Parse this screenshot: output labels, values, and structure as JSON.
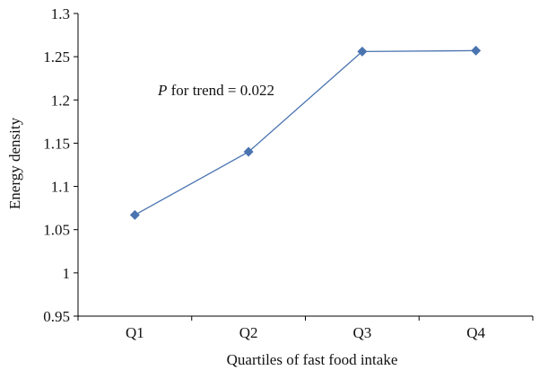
{
  "chart_data": {
    "type": "line",
    "categories": [
      "Q1",
      "Q2",
      "Q3",
      "Q4"
    ],
    "series": [
      {
        "values": [
          1.067,
          1.14,
          1.256,
          1.257
        ]
      }
    ],
    "title": "",
    "xlabel": "Quartiles of fast food intake",
    "ylabel": "Energy density",
    "ylim": [
      0.95,
      1.3
    ],
    "yticks": [
      "0.95",
      "1",
      "1.05",
      "1.1",
      "1.15",
      "1.2",
      "1.25",
      "1.3"
    ],
    "grid": false,
    "legend": "none",
    "marker": "diamond",
    "annotation": {
      "italic_part": "P",
      "rest": " for trend = 0.022"
    },
    "colors": {
      "line": "#4a74b0",
      "marker": "#4a74b0",
      "axis": "#000000"
    }
  }
}
